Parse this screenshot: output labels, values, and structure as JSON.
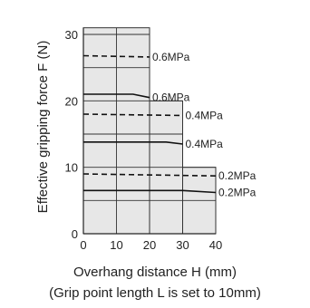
{
  "chart_data": {
    "type": "line",
    "xlabel": "Overhang distance H  (mm)",
    "ylabel": "Effective gripping force  F (N)",
    "note": "(Grip point length L is set to 10mm)",
    "xlim": [
      0,
      40
    ],
    "ylim": [
      0,
      30
    ],
    "x_ticks": [
      0,
      10,
      20,
      30,
      40
    ],
    "y_ticks": [
      0,
      10,
      20,
      30
    ],
    "grid": true,
    "shaded_regions": [
      {
        "x": [
          0,
          20
        ],
        "y": [
          0,
          31
        ]
      },
      {
        "x": [
          20,
          30
        ],
        "y": [
          0,
          20
        ]
      },
      {
        "x": [
          30,
          40
        ],
        "y": [
          0,
          10
        ]
      }
    ],
    "series": [
      {
        "label": "0.6MPa",
        "style": "dashed",
        "x": [
          0,
          20
        ],
        "y": [
          26.8,
          26.6
        ]
      },
      {
        "label": "0.6MPa",
        "style": "solid",
        "x": [
          0,
          15,
          20
        ],
        "y": [
          21,
          21,
          20.5
        ]
      },
      {
        "label": "0.4MPa",
        "style": "dashed",
        "x": [
          0,
          30
        ],
        "y": [
          18,
          17.8
        ]
      },
      {
        "label": "0.4MPa",
        "style": "solid",
        "x": [
          0,
          25,
          30
        ],
        "y": [
          13.8,
          13.8,
          13.5
        ]
      },
      {
        "label": "0.2MPa",
        "style": "dashed",
        "x": [
          0,
          40
        ],
        "y": [
          9,
          8.7
        ]
      },
      {
        "label": "0.2MPa",
        "style": "solid",
        "x": [
          0,
          30,
          40
        ],
        "y": [
          6.5,
          6.5,
          6.2
        ]
      }
    ]
  }
}
